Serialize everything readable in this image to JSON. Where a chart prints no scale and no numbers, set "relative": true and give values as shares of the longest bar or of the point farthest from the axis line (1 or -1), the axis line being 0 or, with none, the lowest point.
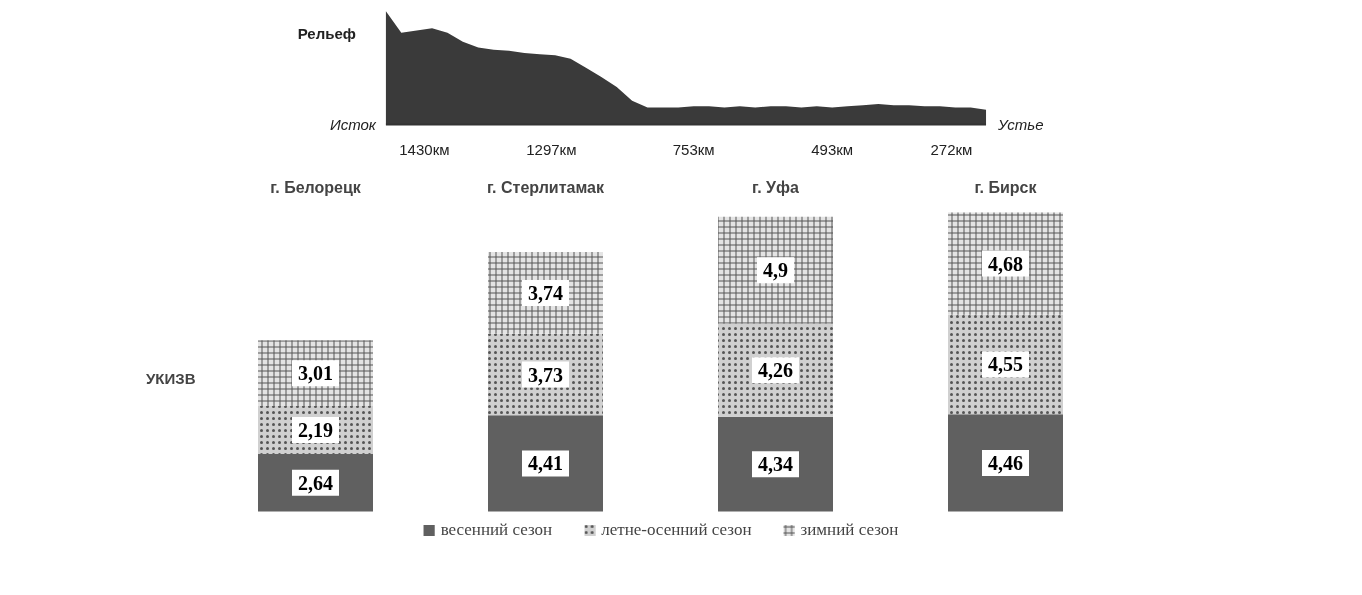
{
  "chart_data": [
    {
      "type": "area",
      "relative": true,
      "color": "#3a3a3a",
      "categories": [
        null,
        null,
        null,
        null,
        null,
        null,
        null,
        null,
        null,
        null,
        null,
        null,
        null,
        null,
        null,
        null,
        null,
        null,
        null,
        null,
        null,
        null,
        null,
        null,
        null,
        null,
        null,
        null,
        null,
        null,
        null,
        null,
        null,
        null,
        null,
        null,
        null,
        null,
        null,
        null
      ],
      "values": [
        1.0,
        0.81,
        0.83,
        0.85,
        0.81,
        0.73,
        0.68,
        0.66,
        0.65,
        0.63,
        0.62,
        0.61,
        0.58,
        0.5,
        0.42,
        0.33,
        0.21,
        0.15,
        0.15,
        0.15,
        0.16,
        0.16,
        0.15,
        0.16,
        0.15,
        0.16,
        0.16,
        0.15,
        0.16,
        0.15,
        0.16,
        0.17,
        0.18,
        0.17,
        0.17,
        0.16,
        0.16,
        0.15,
        0.15,
        0.13
      ],
      "annotations": [
        "Рельеф",
        "Исток",
        "Устье",
        "1430км",
        "1297км",
        "753км",
        "493км",
        "272км"
      ]
    },
    {
      "type": "bar",
      "stacked": true,
      "legend": "bottom",
      "ylabel": "УКИЗВ",
      "categories": [
        "г. Белорецк",
        "г. Стерлитамак",
        "г. Уфа",
        "г. Бирск"
      ],
      "series": [
        {
          "name": "весенний сезон",
          "color": "#606060",
          "values": [
            2.64,
            4.41,
            4.34,
            4.46
          ],
          "value_labels": [
            "2,64",
            "4,41",
            "4,34",
            "4,46"
          ]
        },
        {
          "name": "летне-осенний сезон",
          "color": "#d0d0d0",
          "values": [
            2.19,
            3.73,
            4.26,
            4.55
          ],
          "value_labels": [
            "2,19",
            "3,73",
            "4,26",
            "4,55"
          ]
        },
        {
          "name": "зимний сезон",
          "color": "#e4e4e4",
          "values": [
            3.01,
            3.74,
            4.9,
            4.68
          ],
          "value_labels": [
            "3,01",
            "3,74",
            "4,9",
            "4,68"
          ]
        }
      ]
    }
  ]
}
